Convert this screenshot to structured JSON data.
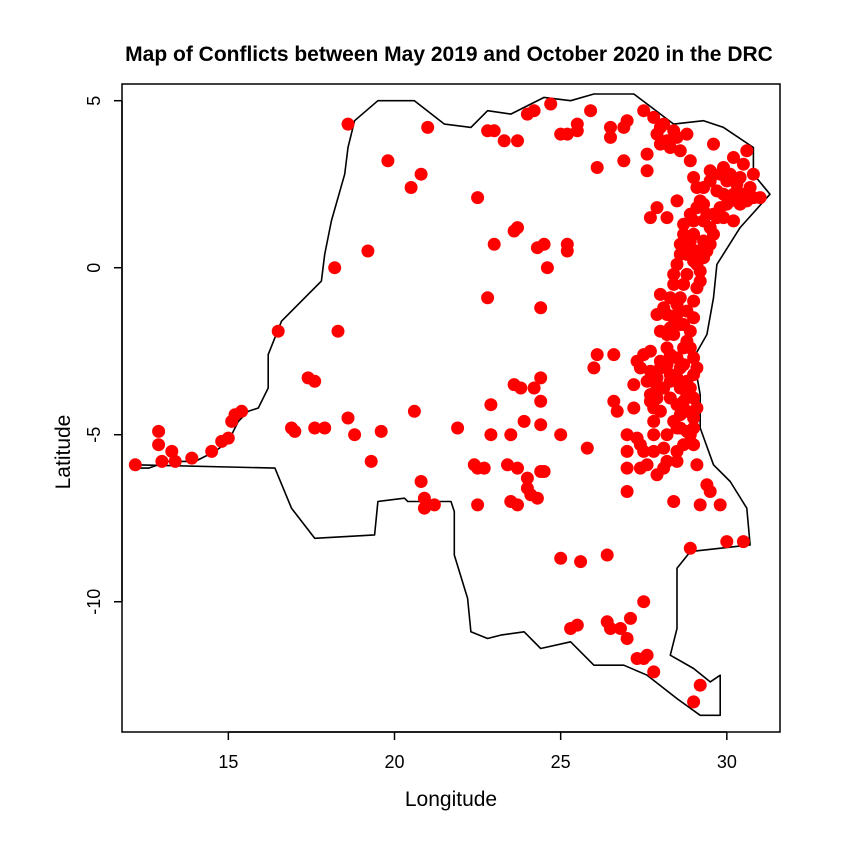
{
  "chart_data": {
    "type": "scatter",
    "title": "Map of Conflicts between May 2019 and October 2020 in the DRC",
    "xlabel": "Longitude",
    "ylabel": "Latitude",
    "xlim": [
      11.8,
      31.6
    ],
    "ylim": [
      -13.9,
      5.5
    ],
    "x_ticks": [
      15,
      20,
      25,
      30
    ],
    "y_ticks": [
      5,
      0,
      -5,
      -10
    ],
    "grid": false,
    "legend": "none",
    "point_color": "#ff0000",
    "outline_color": "#000000",
    "country_outline": [
      [
        12.2,
        -6.0
      ],
      [
        12.6,
        -6.0
      ],
      [
        13.2,
        -5.8
      ],
      [
        14.0,
        -5.8
      ],
      [
        14.6,
        -5.5
      ],
      [
        15.0,
        -5.2
      ],
      [
        15.3,
        -4.6
      ],
      [
        15.6,
        -4.3
      ],
      [
        15.9,
        -4.2
      ],
      [
        16.2,
        -3.6
      ],
      [
        16.2,
        -2.6
      ],
      [
        16.6,
        -1.6
      ],
      [
        17.2,
        -1.0
      ],
      [
        17.8,
        -0.4
      ],
      [
        17.9,
        0.4
      ],
      [
        18.1,
        1.4
      ],
      [
        18.5,
        2.8
      ],
      [
        18.6,
        3.6
      ],
      [
        18.8,
        4.4
      ],
      [
        19.5,
        5.0
      ],
      [
        20.6,
        5.0
      ],
      [
        21.5,
        4.3
      ],
      [
        22.3,
        4.2
      ],
      [
        22.8,
        4.7
      ],
      [
        23.5,
        4.6
      ],
      [
        24.5,
        5.1
      ],
      [
        25.3,
        5.0
      ],
      [
        26.0,
        5.2
      ],
      [
        27.2,
        5.2
      ],
      [
        27.6,
        4.9
      ],
      [
        28.4,
        4.3
      ],
      [
        29.3,
        4.4
      ],
      [
        29.9,
        4.2
      ],
      [
        30.8,
        3.6
      ],
      [
        30.8,
        2.8
      ],
      [
        31.3,
        2.2
      ],
      [
        30.4,
        1.2
      ],
      [
        29.7,
        0.1
      ],
      [
        29.6,
        -0.9
      ],
      [
        29.4,
        -2.0
      ],
      [
        29.0,
        -2.7
      ],
      [
        29.2,
        -3.8
      ],
      [
        29.2,
        -4.8
      ],
      [
        29.6,
        -5.9
      ],
      [
        30.1,
        -6.4
      ],
      [
        30.6,
        -7.2
      ],
      [
        30.7,
        -8.3
      ],
      [
        28.9,
        -8.5
      ],
      [
        28.5,
        -9.0
      ],
      [
        28.5,
        -10.8
      ],
      [
        28.3,
        -11.6
      ],
      [
        29.0,
        -12.0
      ],
      [
        29.5,
        -12.4
      ],
      [
        29.8,
        -12.2
      ],
      [
        29.8,
        -13.4
      ],
      [
        29.2,
        -13.4
      ],
      [
        28.5,
        -12.9
      ],
      [
        27.6,
        -12.2
      ],
      [
        26.9,
        -11.9
      ],
      [
        26.0,
        -11.9
      ],
      [
        25.3,
        -11.2
      ],
      [
        24.4,
        -11.4
      ],
      [
        23.9,
        -10.9
      ],
      [
        23.2,
        -11.0
      ],
      [
        22.8,
        -11.1
      ],
      [
        22.3,
        -10.9
      ],
      [
        22.2,
        -9.9
      ],
      [
        21.8,
        -8.6
      ],
      [
        21.8,
        -7.3
      ],
      [
        21.7,
        -7.0
      ],
      [
        20.4,
        -7.0
      ],
      [
        20.3,
        -6.9
      ],
      [
        19.5,
        -7.0
      ],
      [
        19.4,
        -8.0
      ],
      [
        17.6,
        -8.1
      ],
      [
        16.9,
        -7.2
      ],
      [
        16.4,
        -6.0
      ],
      [
        12.2,
        -5.9
      ]
    ],
    "points": [
      [
        12.2,
        -5.9
      ],
      [
        12.9,
        -4.9
      ],
      [
        12.9,
        -5.3
      ],
      [
        13.0,
        -5.8
      ],
      [
        13.3,
        -5.5
      ],
      [
        13.4,
        -5.8
      ],
      [
        13.9,
        -5.7
      ],
      [
        14.5,
        -5.5
      ],
      [
        14.8,
        -5.2
      ],
      [
        15.0,
        -5.1
      ],
      [
        15.1,
        -4.6
      ],
      [
        15.2,
        -4.4
      ],
      [
        15.4,
        -4.3
      ],
      [
        16.5,
        -1.9
      ],
      [
        16.9,
        -4.8
      ],
      [
        17.0,
        -4.9
      ],
      [
        17.4,
        -3.3
      ],
      [
        17.6,
        -3.4
      ],
      [
        17.6,
        -4.8
      ],
      [
        17.9,
        -4.8
      ],
      [
        18.2,
        0.0
      ],
      [
        18.3,
        -1.9
      ],
      [
        18.6,
        -4.5
      ],
      [
        18.6,
        4.3
      ],
      [
        18.8,
        -5.0
      ],
      [
        19.2,
        0.5
      ],
      [
        19.3,
        -5.8
      ],
      [
        19.6,
        -4.9
      ],
      [
        19.8,
        3.2
      ],
      [
        20.5,
        2.4
      ],
      [
        20.6,
        -4.3
      ],
      [
        20.8,
        2.8
      ],
      [
        20.8,
        -6.4
      ],
      [
        20.9,
        -6.9
      ],
      [
        20.9,
        -7.2
      ],
      [
        21.0,
        4.2
      ],
      [
        21.2,
        -7.1
      ],
      [
        21.9,
        -4.8
      ],
      [
        22.4,
        -5.9
      ],
      [
        22.5,
        -6.0
      ],
      [
        22.5,
        -7.1
      ],
      [
        22.5,
        2.1
      ],
      [
        22.7,
        -6.0
      ],
      [
        22.8,
        4.1
      ],
      [
        22.8,
        -0.9
      ],
      [
        22.9,
        -4.1
      ],
      [
        22.9,
        -5.0
      ],
      [
        23.0,
        0.7
      ],
      [
        23.0,
        4.1
      ],
      [
        23.3,
        3.8
      ],
      [
        23.4,
        -5.9
      ],
      [
        23.5,
        -5.0
      ],
      [
        23.5,
        -7.0
      ],
      [
        23.6,
        -3.5
      ],
      [
        23.6,
        1.1
      ],
      [
        23.7,
        1.2
      ],
      [
        23.7,
        3.8
      ],
      [
        23.7,
        -6.0
      ],
      [
        23.7,
        -7.1
      ],
      [
        23.8,
        -3.6
      ],
      [
        23.9,
        -4.6
      ],
      [
        24.0,
        -6.3
      ],
      [
        24.0,
        -6.6
      ],
      [
        24.1,
        -6.8
      ],
      [
        24.0,
        4.6
      ],
      [
        24.2,
        4.7
      ],
      [
        24.2,
        -3.6
      ],
      [
        24.3,
        0.6
      ],
      [
        24.3,
        -6.9
      ],
      [
        24.4,
        -3.3
      ],
      [
        24.4,
        -4.0
      ],
      [
        24.4,
        -4.7
      ],
      [
        24.4,
        -6.1
      ],
      [
        24.4,
        -1.2
      ],
      [
        24.5,
        0.7
      ],
      [
        24.5,
        -6.1
      ],
      [
        24.6,
        0.0
      ],
      [
        24.7,
        4.9
      ],
      [
        25.0,
        4.0
      ],
      [
        25.0,
        -5.0
      ],
      [
        25.0,
        -8.7
      ],
      [
        25.2,
        4.0
      ],
      [
        25.2,
        0.7
      ],
      [
        25.2,
        0.5
      ],
      [
        25.3,
        -10.8
      ],
      [
        25.5,
        4.3
      ],
      [
        25.5,
        4.1
      ],
      [
        25.5,
        -10.7
      ],
      [
        25.6,
        -8.8
      ],
      [
        25.8,
        -5.4
      ],
      [
        25.9,
        4.7
      ],
      [
        26.0,
        -3.0
      ],
      [
        26.1,
        -2.6
      ],
      [
        26.1,
        3.0
      ],
      [
        26.4,
        -10.6
      ],
      [
        26.4,
        -8.6
      ],
      [
        26.5,
        3.9
      ],
      [
        26.5,
        -10.8
      ],
      [
        26.5,
        4.2
      ],
      [
        26.6,
        -2.6
      ],
      [
        26.6,
        -4.0
      ],
      [
        26.7,
        -4.3
      ],
      [
        26.8,
        -10.8
      ],
      [
        26.9,
        4.2
      ],
      [
        26.9,
        3.2
      ],
      [
        27.0,
        4.4
      ],
      [
        27.0,
        -5.0
      ],
      [
        27.0,
        -5.5
      ],
      [
        27.0,
        -6.0
      ],
      [
        27.0,
        -6.7
      ],
      [
        27.0,
        -11.1
      ],
      [
        27.1,
        -10.5
      ],
      [
        27.2,
        -4.2
      ],
      [
        27.2,
        -3.5
      ],
      [
        27.3,
        -5.1
      ],
      [
        27.3,
        -11.7
      ],
      [
        27.4,
        -6.0
      ],
      [
        27.5,
        -11.7
      ],
      [
        27.6,
        -11.6
      ],
      [
        27.5,
        -10.0
      ],
      [
        27.5,
        4.7
      ],
      [
        27.5,
        -5.5
      ],
      [
        27.6,
        2.9
      ],
      [
        27.6,
        3.4
      ],
      [
        27.7,
        1.5
      ],
      [
        27.7,
        -2.5
      ],
      [
        27.7,
        -4.0
      ],
      [
        27.8,
        -5.0
      ],
      [
        27.8,
        -5.5
      ],
      [
        27.8,
        -12.1
      ],
      [
        27.9,
        -6.2
      ],
      [
        27.9,
        1.8
      ],
      [
        28.0,
        4.2
      ],
      [
        28.0,
        3.7
      ],
      [
        28.0,
        -0.8
      ],
      [
        28.1,
        -5.4
      ],
      [
        28.1,
        -6.0
      ],
      [
        28.2,
        -5.0
      ],
      [
        28.2,
        1.5
      ],
      [
        28.2,
        3.8
      ],
      [
        28.2,
        -1.4
      ],
      [
        28.3,
        -2.6
      ],
      [
        28.3,
        -3.2
      ],
      [
        28.4,
        -7.0
      ],
      [
        28.4,
        -0.5
      ],
      [
        28.5,
        2.0
      ],
      [
        28.5,
        -4.8
      ],
      [
        28.6,
        0.4
      ],
      [
        28.6,
        -1.7
      ],
      [
        28.7,
        1.3
      ],
      [
        28.8,
        -0.2
      ],
      [
        28.8,
        -1.3
      ],
      [
        28.8,
        -2.2
      ],
      [
        28.9,
        0.8
      ],
      [
        28.9,
        -3.6
      ],
      [
        28.9,
        -8.4
      ],
      [
        29.0,
        1.4
      ],
      [
        29.0,
        -1.0
      ],
      [
        29.0,
        -2.7
      ],
      [
        29.0,
        -4.8
      ],
      [
        29.0,
        -13.0
      ],
      [
        29.1,
        0.5
      ],
      [
        29.1,
        -5.9
      ],
      [
        29.2,
        -0.1
      ],
      [
        29.2,
        -7.1
      ],
      [
        29.2,
        -12.5
      ],
      [
        29.3,
        0.8
      ],
      [
        29.3,
        1.9
      ],
      [
        29.4,
        -6.5
      ],
      [
        29.5,
        2.9
      ],
      [
        29.5,
        -6.7
      ],
      [
        29.6,
        3.7
      ],
      [
        29.7,
        1.5
      ],
      [
        29.8,
        -7.1
      ],
      [
        29.9,
        2.2
      ],
      [
        30.0,
        -8.2
      ],
      [
        30.1,
        2.8
      ],
      [
        30.2,
        1.4
      ],
      [
        30.3,
        2.5
      ],
      [
        30.4,
        1.9
      ],
      [
        30.5,
        -8.2
      ],
      [
        30.6,
        3.5
      ],
      [
        30.7,
        2.4
      ],
      [
        30.8,
        2.8
      ],
      [
        31.0,
        2.1
      ],
      [
        27.8,
        4.5
      ],
      [
        27.9,
        4.0
      ],
      [
        28.1,
        4.3
      ],
      [
        28.4,
        4.1
      ],
      [
        28.6,
        3.5
      ],
      [
        28.9,
        3.2
      ],
      [
        29.1,
        2.4
      ],
      [
        29.2,
        2.0
      ],
      [
        29.4,
        1.6
      ],
      [
        29.5,
        1.2
      ],
      [
        29.6,
        1.0
      ],
      [
        29.3,
        1.4
      ],
      [
        29.0,
        1.0
      ],
      [
        28.9,
        0.5
      ],
      [
        29.0,
        0.2
      ],
      [
        29.1,
        0.1
      ],
      [
        28.8,
        0.4
      ],
      [
        28.7,
        -0.5
      ],
      [
        28.6,
        -0.9
      ],
      [
        28.5,
        -1.1
      ],
      [
        28.4,
        -1.5
      ],
      [
        28.4,
        -2.0
      ],
      [
        28.2,
        -2.4
      ],
      [
        28.0,
        -2.8
      ],
      [
        28.0,
        -3.0
      ],
      [
        27.9,
        -3.3
      ],
      [
        27.9,
        -3.6
      ],
      [
        27.7,
        -3.8
      ],
      [
        27.6,
        -3.4
      ],
      [
        27.4,
        -3.0
      ],
      [
        27.3,
        -2.8
      ],
      [
        27.5,
        -2.6
      ],
      [
        28.1,
        -3.6
      ],
      [
        28.3,
        -3.9
      ],
      [
        28.5,
        -4.1
      ],
      [
        28.6,
        -3.0
      ],
      [
        28.7,
        -2.9
      ],
      [
        28.8,
        -3.4
      ],
      [
        29.0,
        -3.9
      ],
      [
        29.1,
        -4.2
      ],
      [
        29.0,
        -4.5
      ],
      [
        28.8,
        -4.3
      ],
      [
        28.7,
        -4.0
      ],
      [
        28.6,
        -4.4
      ],
      [
        28.9,
        -5.0
      ],
      [
        28.7,
        -5.3
      ],
      [
        28.5,
        -5.5
      ],
      [
        28.0,
        -4.3
      ],
      [
        27.8,
        -4.6
      ],
      [
        27.7,
        -3.1
      ],
      [
        28.2,
        -2.0
      ],
      [
        28.3,
        -1.8
      ],
      [
        28.5,
        -1.4
      ],
      [
        28.7,
        -1.7
      ],
      [
        28.9,
        -1.9
      ],
      [
        29.0,
        -1.5
      ],
      [
        29.1,
        -0.6
      ],
      [
        29.2,
        -0.4
      ],
      [
        29.3,
        0.3
      ],
      [
        29.4,
        0.5
      ],
      [
        29.5,
        0.7
      ],
      [
        29.6,
        1.6
      ],
      [
        29.8,
        1.8
      ],
      [
        29.9,
        1.5
      ],
      [
        30.0,
        1.9
      ],
      [
        30.1,
        2.0
      ],
      [
        30.2,
        2.2
      ],
      [
        30.3,
        2.0
      ],
      [
        30.5,
        2.2
      ],
      [
        30.6,
        2.0
      ],
      [
        30.8,
        2.1
      ],
      [
        30.4,
        2.7
      ],
      [
        30.0,
        2.6
      ],
      [
        29.8,
        2.8
      ],
      [
        29.5,
        2.6
      ],
      [
        29.3,
        2.4
      ],
      [
        29.1,
        1.8
      ],
      [
        28.9,
        1.6
      ],
      [
        28.7,
        1.0
      ],
      [
        28.6,
        0.7
      ],
      [
        28.5,
        0.1
      ],
      [
        28.4,
        -0.2
      ],
      [
        28.3,
        -0.9
      ],
      [
        28.1,
        -1.2
      ],
      [
        27.9,
        -1.4
      ],
      [
        28.0,
        -1.9
      ],
      [
        28.2,
        -2.9
      ],
      [
        28.5,
        -3.3
      ],
      [
        28.6,
        -3.6
      ],
      [
        28.8,
        -3.8
      ],
      [
        29.0,
        -3.2
      ],
      [
        29.1,
        -3.0
      ],
      [
        28.9,
        -2.4
      ],
      [
        28.7,
        -2.4
      ],
      [
        28.5,
        -2.7
      ],
      [
        28.3,
        -3.4
      ],
      [
        27.9,
        -3.9
      ],
      [
        27.8,
        -4.2
      ],
      [
        28.4,
        -4.6
      ],
      [
        28.6,
        -4.8
      ],
      [
        28.8,
        -4.9
      ],
      [
        29.0,
        -5.3
      ],
      [
        28.5,
        -5.8
      ],
      [
        28.2,
        -5.8
      ],
      [
        27.6,
        -5.9
      ],
      [
        27.4,
        -5.3
      ],
      [
        28.8,
        4.0
      ],
      [
        28.5,
        3.9
      ],
      [
        28.3,
        3.6
      ],
      [
        29.0,
        2.7
      ],
      [
        29.7,
        2.3
      ],
      [
        29.9,
        3.0
      ],
      [
        30.2,
        3.3
      ],
      [
        30.5,
        3.1
      ]
    ]
  }
}
